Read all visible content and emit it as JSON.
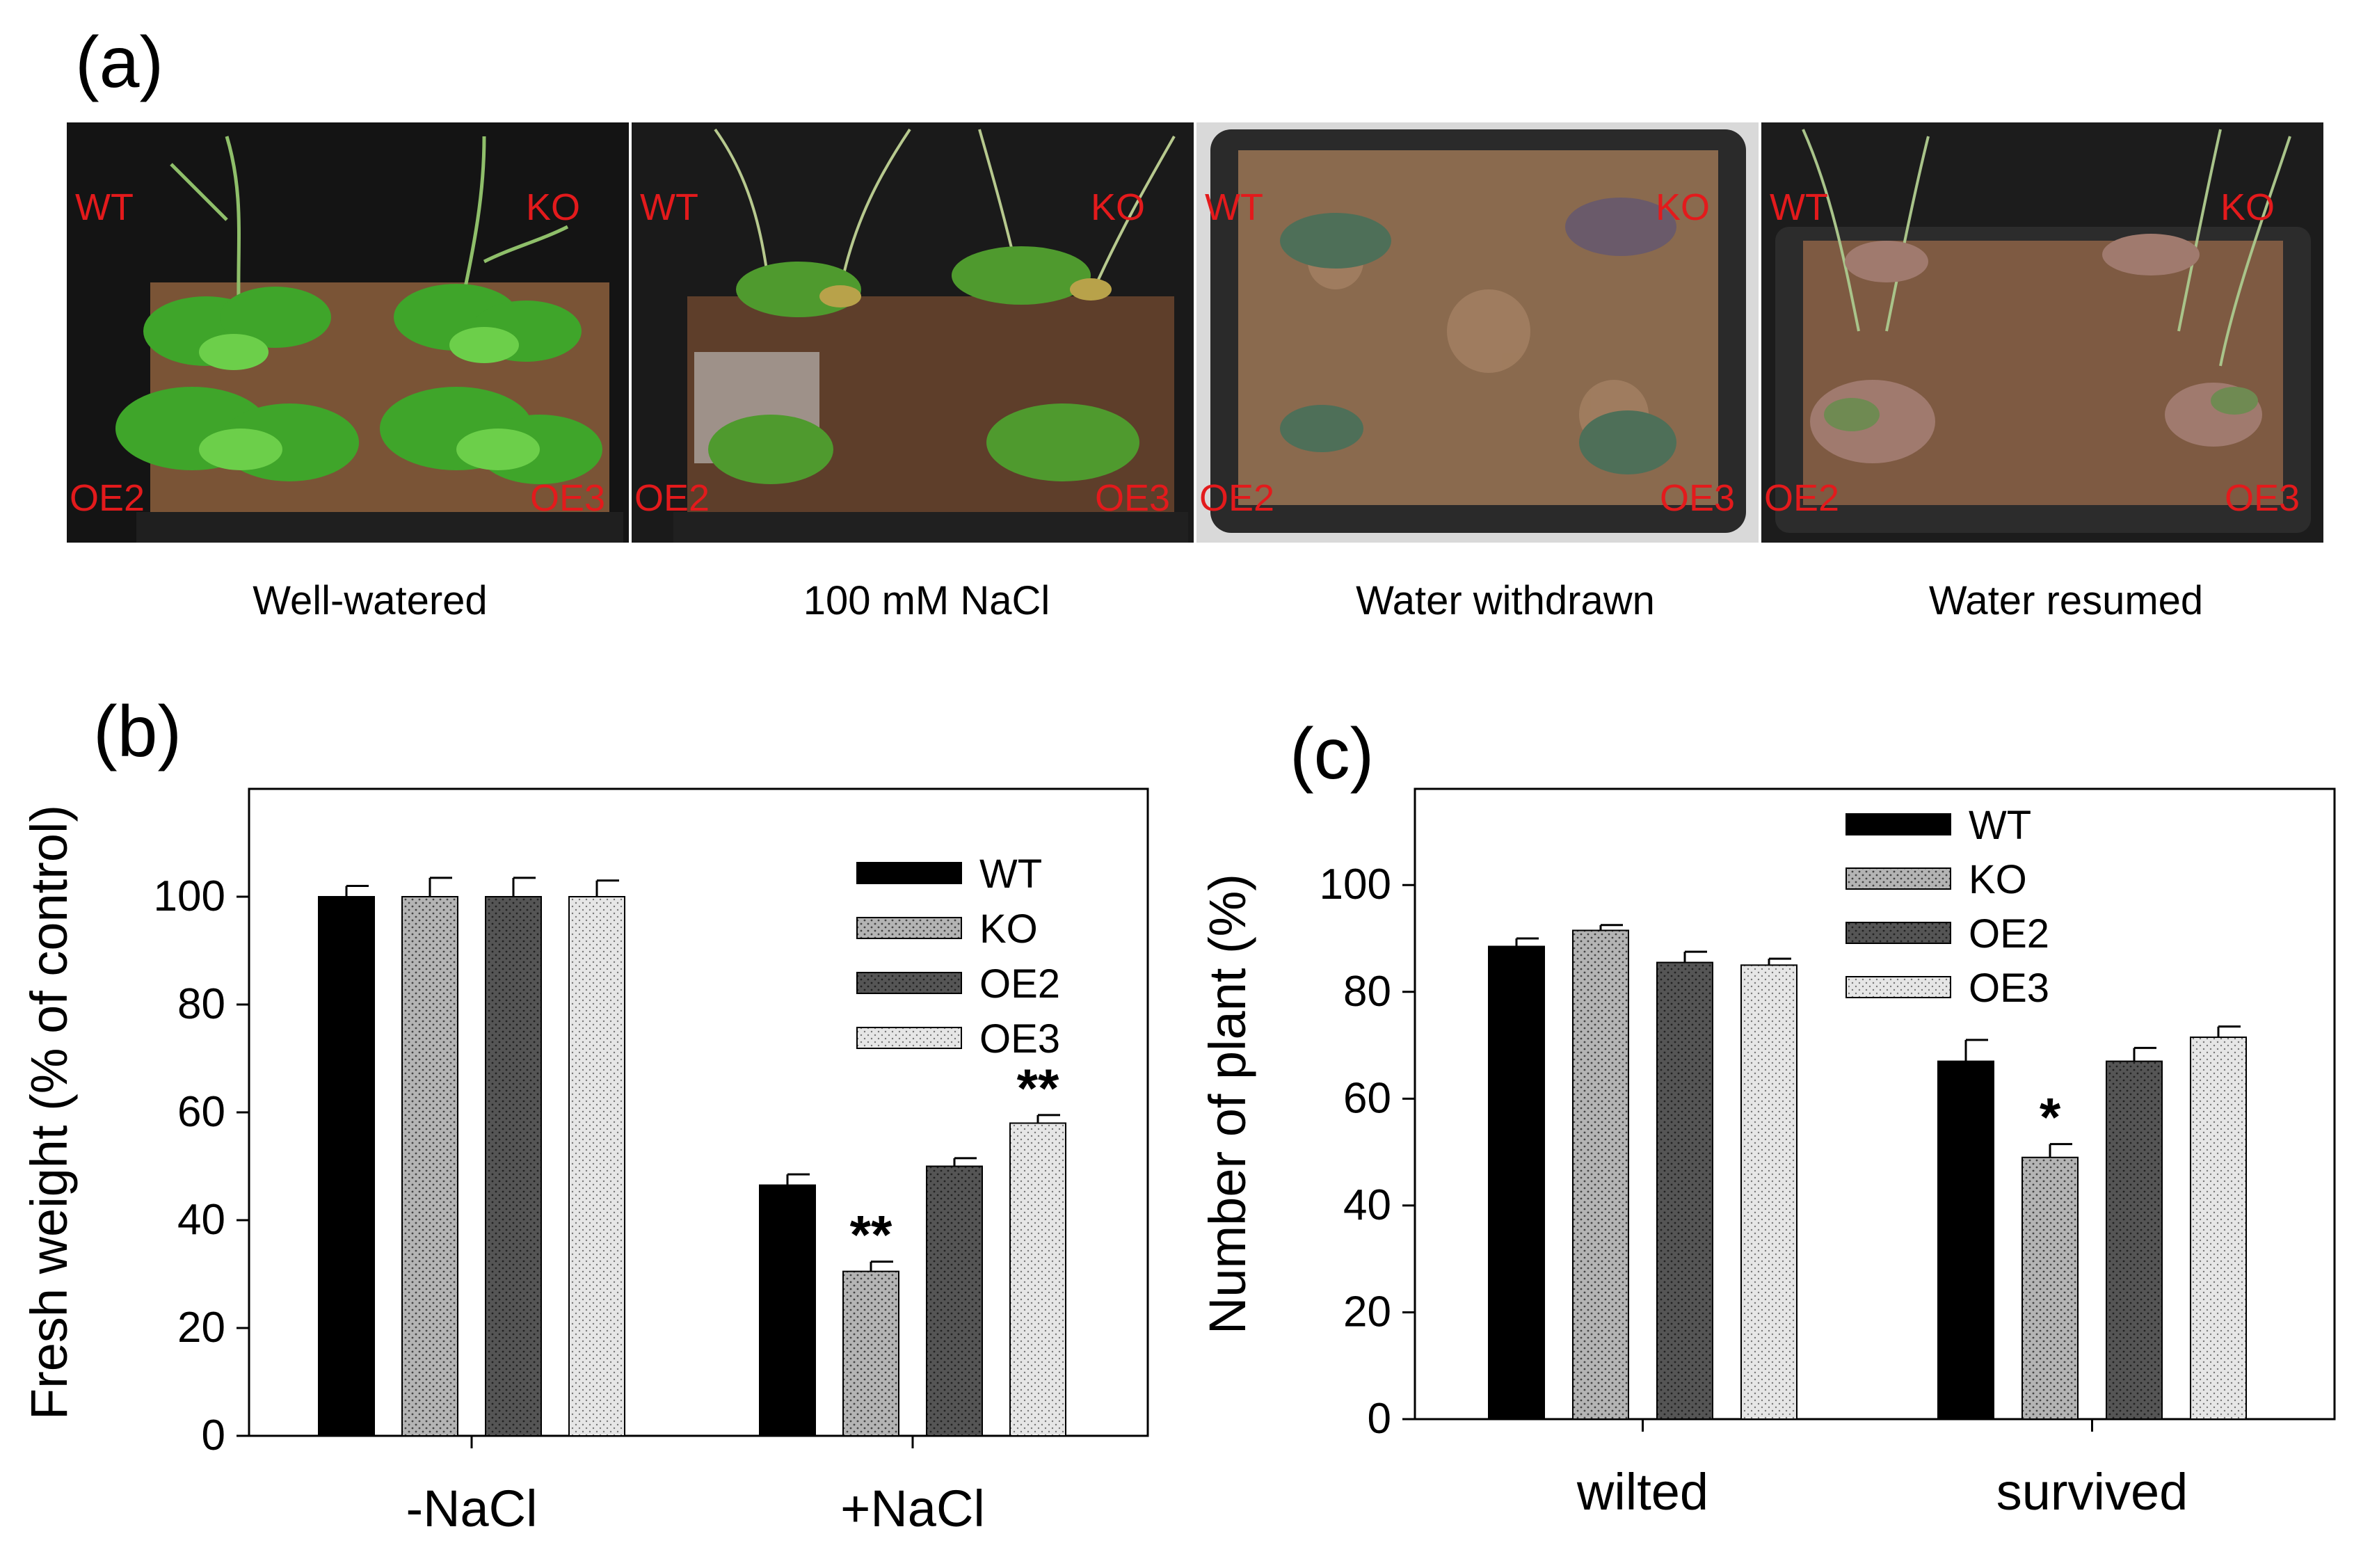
{
  "panel_labels": {
    "a": "(a)",
    "b": "(b)",
    "c": "(c)"
  },
  "photos": [
    {
      "caption": "Well-watered",
      "labels": {
        "tl": "WT",
        "tr": "KO",
        "bl": "OE2",
        "br": "OE3"
      }
    },
    {
      "caption": "100 mM NaCl",
      "labels": {
        "tl": "WT",
        "tr": "KO",
        "bl": "OE2",
        "br": "OE3"
      }
    },
    {
      "caption": "Water withdrawn",
      "labels": {
        "tl": "WT",
        "tr": "KO",
        "bl": "OE2",
        "br": "OE3"
      }
    },
    {
      "caption": "Water resumed",
      "labels": {
        "tl": "WT",
        "tr": "KO",
        "bl": "OE2",
        "br": "OE3"
      }
    }
  ],
  "colors": {
    "label_red": "#e31a1c",
    "WT": "#000000",
    "KO": "#b4b4b4",
    "OE2": "#555555",
    "OE3": "#e6e6e6"
  },
  "chart_data": [
    {
      "type": "bar",
      "panel": "b",
      "ylabel": "Fresh weight (% of control)",
      "categories": [
        "-NaCl",
        "+NaCl"
      ],
      "ylim": [
        0,
        120
      ],
      "yticks": [
        0,
        20,
        40,
        60,
        80,
        100
      ],
      "legend_position": "top-right",
      "series": [
        {
          "name": "WT",
          "values": [
            100,
            46.5
          ],
          "errors": [
            2,
            2
          ],
          "marks": [
            "",
            ""
          ]
        },
        {
          "name": "KO",
          "values": [
            100,
            30.5
          ],
          "errors": [
            3.5,
            1.8
          ],
          "marks": [
            "",
            "**"
          ]
        },
        {
          "name": "OE2",
          "values": [
            100,
            50
          ],
          "errors": [
            3.5,
            1.5
          ],
          "marks": [
            "",
            ""
          ]
        },
        {
          "name": "OE3",
          "values": [
            100,
            58
          ],
          "errors": [
            3,
            1.5
          ],
          "marks": [
            "",
            "**"
          ]
        }
      ]
    },
    {
      "type": "bar",
      "panel": "c",
      "ylabel": "Number of plant (%)",
      "categories": [
        "wilted",
        "survived"
      ],
      "ylim": [
        0,
        118
      ],
      "yticks": [
        0,
        20,
        40,
        60,
        80,
        100
      ],
      "legend_position": "top-center",
      "series": [
        {
          "name": "WT",
          "values": [
            88.5,
            67
          ],
          "errors": [
            1.5,
            4
          ],
          "marks": [
            "",
            ""
          ]
        },
        {
          "name": "KO",
          "values": [
            91.5,
            49
          ],
          "errors": [
            1,
            2.5
          ],
          "marks": [
            "",
            "*"
          ]
        },
        {
          "name": "OE2",
          "values": [
            85.5,
            67
          ],
          "errors": [
            2,
            2.5
          ],
          "marks": [
            "",
            ""
          ]
        },
        {
          "name": "OE3",
          "values": [
            85,
            71.5
          ],
          "errors": [
            1.2,
            2
          ],
          "marks": [
            "",
            ""
          ]
        }
      ]
    }
  ]
}
